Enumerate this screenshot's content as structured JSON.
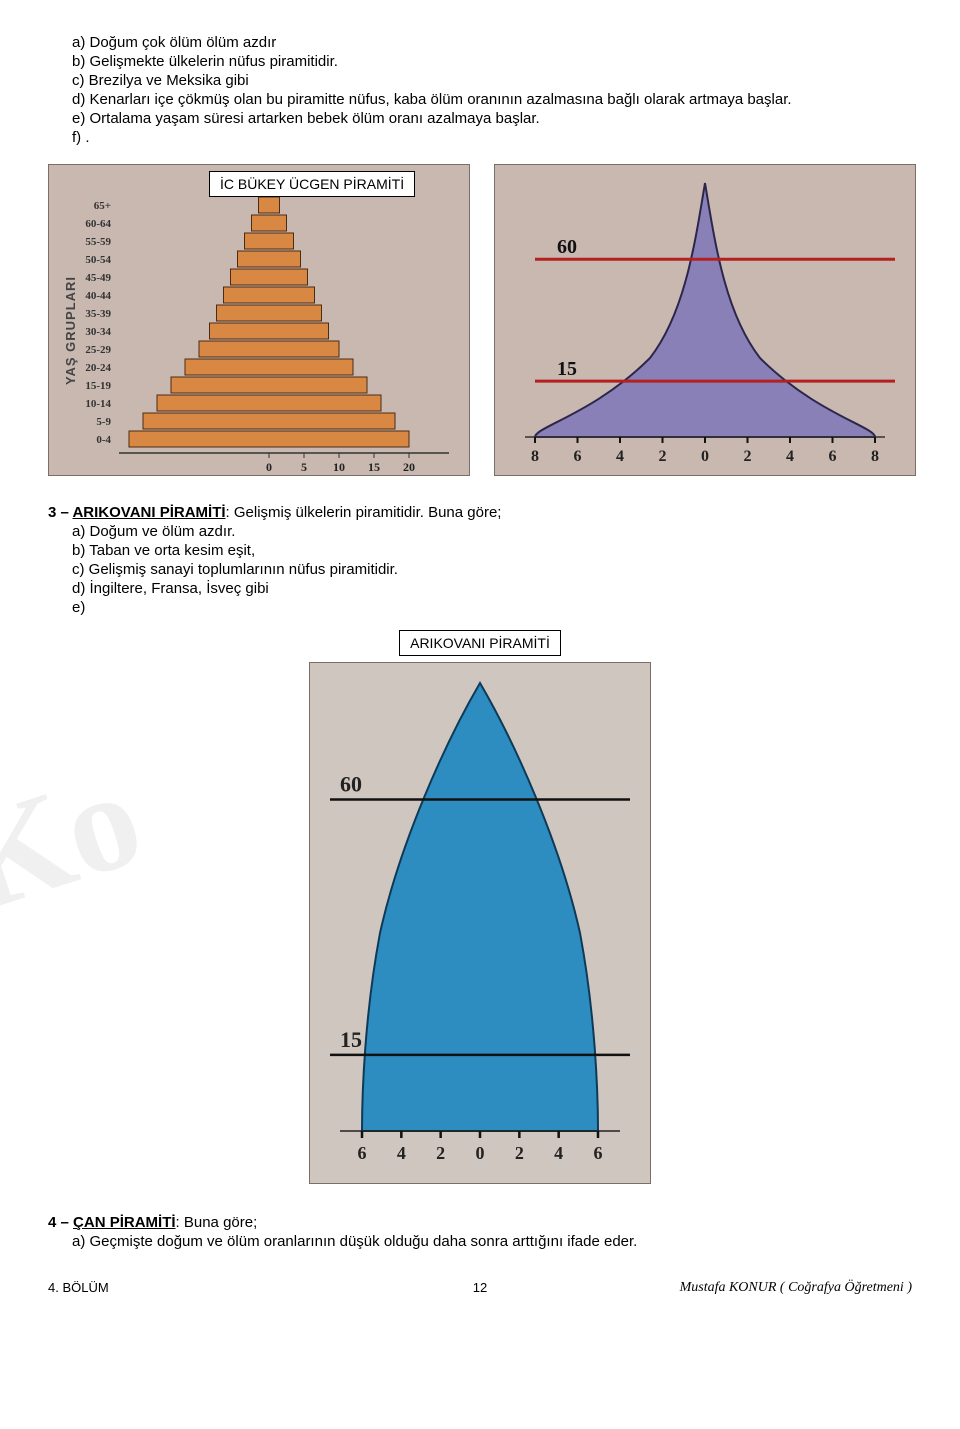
{
  "intro": {
    "a": "a) Doğum çok ölüm ölüm azdır",
    "b": "b) Gelişmekte ülkelerin nüfus piramitidir.",
    "c": "c) Brezilya ve Meksika gibi",
    "d": "d) Kenarları içe çökmüş olan bu piramitte nüfus, kaba ölüm oranının azalmasına bağlı olarak artmaya başlar.",
    "e": "e) Ortalama yaşam süresi artarken bebek ölüm oranı azalmaya başlar.",
    "f": "f) ."
  },
  "fig1": {
    "label_box": "İC BÜKEY ÜCGEN PİRAMİTİ",
    "y_title": "YAŞ GRUPLARI",
    "age_labels": [
      "65+",
      "60-64",
      "55-59",
      "50-54",
      "45-49",
      "40-44",
      "35-39",
      "30-34",
      "25-29",
      "20-24",
      "15-19",
      "10-14",
      "5-9",
      "0-4"
    ],
    "bar_halfwidths": [
      1.5,
      2.5,
      3.5,
      4.5,
      5.5,
      6.5,
      7.5,
      8.5,
      10,
      12,
      14,
      16,
      18,
      20
    ],
    "x_ticks": [
      "0",
      "5",
      "10",
      "15",
      "20"
    ],
    "x_unit": "%",
    "bar_color": "#d98844",
    "bar_border": "#4a2c14",
    "bg": "#c8b8b0"
  },
  "fig2": {
    "shape_fill": "#8a80b8",
    "shape_stroke": "#2c264a",
    "line_color": "#b42020",
    "mark_top": "60",
    "mark_bottom": "15",
    "x_ticks": [
      "8",
      "6",
      "4",
      "2",
      "0",
      "2",
      "4",
      "6",
      "8"
    ],
    "bg": "#c8b8b0"
  },
  "section3": {
    "head_num": "3 – ",
    "head_name": "ARIKOVANI PİRAMİTİ",
    "head_rest": ": Gelişmiş ülkelerin piramitidir. Buna göre;",
    "a": "a) Doğum ve ölüm azdır.",
    "b": "b) Taban ve orta kesim eşit,",
    "c": "c) Gelişmiş sanayi toplumlarının nüfus piramitidir.",
    "d": "d) İngiltere, Fransa, İsveç gibi",
    "e": "e)",
    "label_box": "ARIKOVANI PİRAMİTİ"
  },
  "fig3": {
    "shape_fill": "#2d8cc0",
    "shape_stroke": "#0e3a57",
    "mark_top": "60",
    "mark_bottom": "15",
    "x_ticks": [
      "6",
      "4",
      "2",
      "0",
      "2",
      "4",
      "6"
    ],
    "bg": "#cfc6c0"
  },
  "section4": {
    "head_num": "4 – ",
    "head_name": "ÇAN PİRAMİTİ",
    "head_rest": ": Buna göre;",
    "a": "a) Geçmişte doğum ve ölüm oranlarının düşük olduğu daha sonra arttığını ifade eder."
  },
  "footer": {
    "left": "4. BÖLÜM",
    "page": "12",
    "right": "Mustafa KONUR ( Coğrafya Öğretmeni )"
  },
  "watermark": "Ko"
}
